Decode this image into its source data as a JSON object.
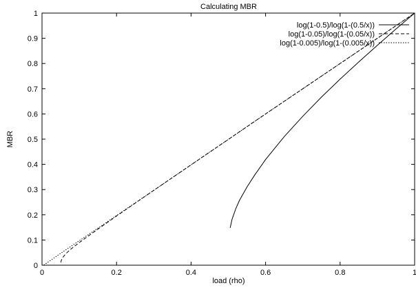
{
  "chart_data": {
    "type": "line",
    "title": "Calculating MBR",
    "xlabel": "load (rho)",
    "ylabel": "MBR",
    "xlim": [
      0,
      1
    ],
    "ylim": [
      0,
      1
    ],
    "x_ticks": [
      "0",
      "0.2",
      "0.4",
      "0.6",
      "0.8",
      "1"
    ],
    "y_ticks": [
      "0",
      "0.1",
      "0.2",
      "0.3",
      "0.4",
      "0.5",
      "0.6",
      "0.7",
      "0.8",
      "0.9",
      "1"
    ],
    "grid": false,
    "legend_position": "top-right",
    "series": [
      {
        "name": "log(1-0.5)/log(1-(0.5/x))",
        "style": "solid",
        "x": [
          0.505,
          0.51,
          0.52,
          0.53,
          0.55,
          0.57,
          0.6,
          0.65,
          0.7,
          0.75,
          0.8,
          0.85,
          0.9,
          0.95,
          1.0
        ],
        "y": [
          0.148,
          0.182,
          0.224,
          0.257,
          0.31,
          0.356,
          0.419,
          0.51,
          0.591,
          0.667,
          0.738,
          0.806,
          0.872,
          0.937,
          1.0
        ]
      },
      {
        "name": "log(1-0.05)/log(1-(0.05/x))",
        "style": "dashed",
        "x": [
          0.0505,
          0.052,
          0.055,
          0.06,
          0.065,
          0.07,
          0.08,
          0.1,
          0.15,
          0.2,
          0.3,
          0.4,
          0.5,
          0.6,
          0.7,
          0.8,
          0.9,
          1.0
        ],
        "y": [
          0.011,
          0.02,
          0.029,
          0.039,
          0.047,
          0.054,
          0.067,
          0.09,
          0.143,
          0.195,
          0.297,
          0.398,
          0.499,
          0.6,
          0.7,
          0.8,
          0.9,
          1.0
        ]
      },
      {
        "name": "log(1-0.005)/log(1-(0.005/x))",
        "style": "dotted",
        "x": [
          0.005,
          0.006,
          0.008,
          0.01,
          0.02,
          0.05,
          0.1,
          0.2,
          0.3,
          0.4,
          0.5,
          0.6,
          0.7,
          0.8,
          0.9,
          1.0
        ],
        "y": [
          0.0,
          0.002,
          0.004,
          0.006,
          0.016,
          0.047,
          0.097,
          0.197,
          0.297,
          0.398,
          0.499,
          0.6,
          0.7,
          0.8,
          0.9,
          1.0
        ]
      }
    ]
  }
}
